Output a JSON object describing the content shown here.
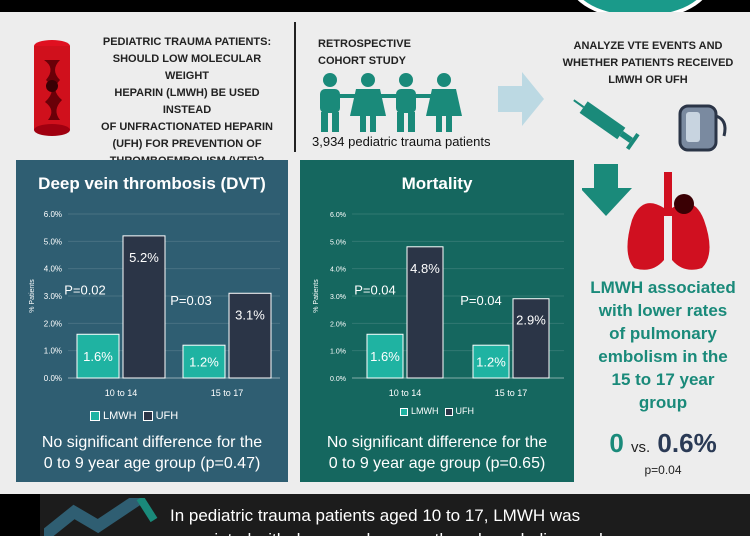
{
  "question": {
    "line1": "PEDIATRIC TRAUMA PATIENTS:",
    "line2": "SHOULD LOW MOLECULAR WEIGHT",
    "line3": "HEPARIN (LMWH) BE USED INSTEAD",
    "line4": "OF UNFRACTIONATED HEPARIN",
    "line5": "(UFH) FOR PREVENTION OF",
    "line6": "THROMBOEMBOLISM (VTE)?"
  },
  "study": {
    "title_line1": "RETROSPECTIVE",
    "title_line2": "COHORT STUDY",
    "patients": "3,934 pediatric trauma patients"
  },
  "analyze": {
    "line1": "ANALYZE VTE EVENTS AND",
    "line2": "WHETHER PATIENTS RECEIVED",
    "line3": "LMWH OR UFH"
  },
  "colors": {
    "lmwh": "#1fb3a2",
    "ufh": "#2b3547",
    "dvt_panel": "#2f5e72",
    "mort_panel": "#15675f",
    "teal_text": "#1a8a7a",
    "lung": "#c8102e"
  },
  "chart_data": [
    {
      "type": "bar",
      "title": "Deep vein thrombosis (DVT)",
      "ylabel": "",
      "ylim": [
        0,
        6
      ],
      "yticks": [
        "0.0%",
        "1.0%",
        "2.0%",
        "3.0%",
        "4.0%",
        "5.0%",
        "6.0%"
      ],
      "categories": [
        "10 to 14",
        "15 to 17"
      ],
      "series": [
        {
          "name": "LMWH",
          "values": [
            1.6,
            1.2
          ],
          "labels": [
            "1.6%",
            "1.2%"
          ]
        },
        {
          "name": "UFH",
          "values": [
            5.2,
            3.1
          ],
          "labels": [
            "5.2%",
            "3.1%"
          ]
        }
      ],
      "pvalues": [
        "P=0.02",
        "P=0.03"
      ],
      "note_line1": "No significant difference for the",
      "note_line2": "0 to 9 year age group (p=0.47)"
    },
    {
      "type": "bar",
      "title": "Mortality",
      "ylabel": "% Patients",
      "ylim": [
        0,
        6
      ],
      "yticks": [
        "0.0%",
        "1.0%",
        "2.0%",
        "3.0%",
        "4.0%",
        "5.0%",
        "6.0%"
      ],
      "categories": [
        "10 to 14",
        "15 to 17"
      ],
      "series": [
        {
          "name": "LMWH",
          "values": [
            1.6,
            1.2
          ],
          "labels": [
            "1.6%",
            "1.2%"
          ]
        },
        {
          "name": "UFH",
          "values": [
            4.8,
            2.9
          ],
          "labels": [
            "4.8%",
            "2.9%"
          ]
        }
      ],
      "pvalues": [
        "P=0.04",
        "P=0.04"
      ],
      "note_line1": "No significant difference for the",
      "note_line2": "0 to 9 year age group (p=0.65)"
    }
  ],
  "dvt_ylabel": "% Patients",
  "pe": {
    "line1": "LMWH associated",
    "line2": "with lower rates",
    "line3": "of pulmonary",
    "line4": "embolism in the",
    "line5": "15 to 17 year",
    "line6": "group",
    "lmwh_value": "0",
    "vs": "vs.",
    "ufh_value": "0.6%",
    "pvalue": "p=0.04"
  },
  "conclusion": {
    "line1": "In pediatric trauma patients aged 10 to 17, LMWH was",
    "line2": "associated with decreased venous thromboembolism and"
  }
}
